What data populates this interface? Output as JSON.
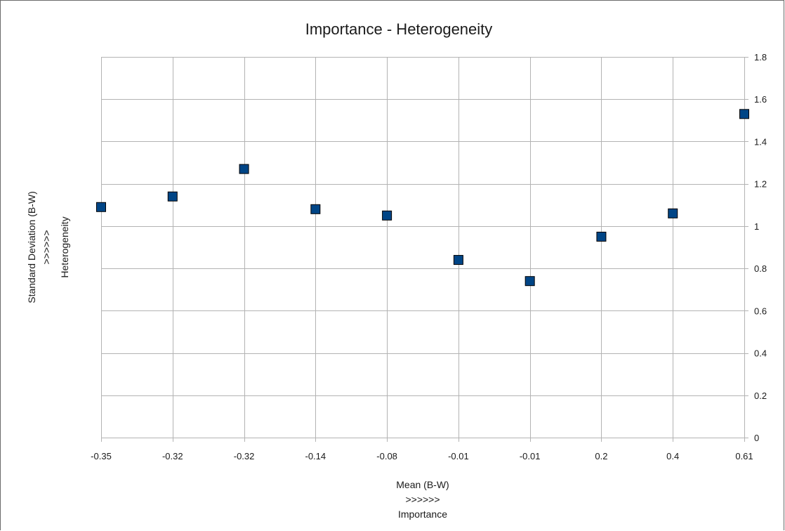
{
  "chart_data": {
    "type": "scatter",
    "title": "Importance - Heterogeneity",
    "xlabel_lines": [
      "Mean (B-W)",
      ">>>>>>",
      "Importance"
    ],
    "ylabel_lines": [
      "Standard Deviation (B-W)",
      ">>>>>>",
      "Heterogeneity"
    ],
    "categories": [
      "-0.35",
      "-0.32",
      "-0.32",
      "-0.14",
      "-0.08",
      "-0.01",
      "-0.01",
      "0.2",
      "0.4",
      "0.61"
    ],
    "values": [
      1.09,
      1.14,
      1.27,
      1.08,
      1.05,
      0.84,
      0.74,
      0.95,
      1.06,
      1.53
    ],
    "ylim": [
      0,
      1.8
    ],
    "yticks": [
      "0",
      "0.2",
      "0.4",
      "0.6",
      "0.8",
      "1",
      "1.2",
      "1.4",
      "1.6",
      "1.8"
    ],
    "grid": true,
    "y_axis_side": "right",
    "legend": "none",
    "marker": "square",
    "colors": {
      "marker_fill": "#004586",
      "marker_stroke": "#000000",
      "grid": "#b3b3b3"
    }
  }
}
